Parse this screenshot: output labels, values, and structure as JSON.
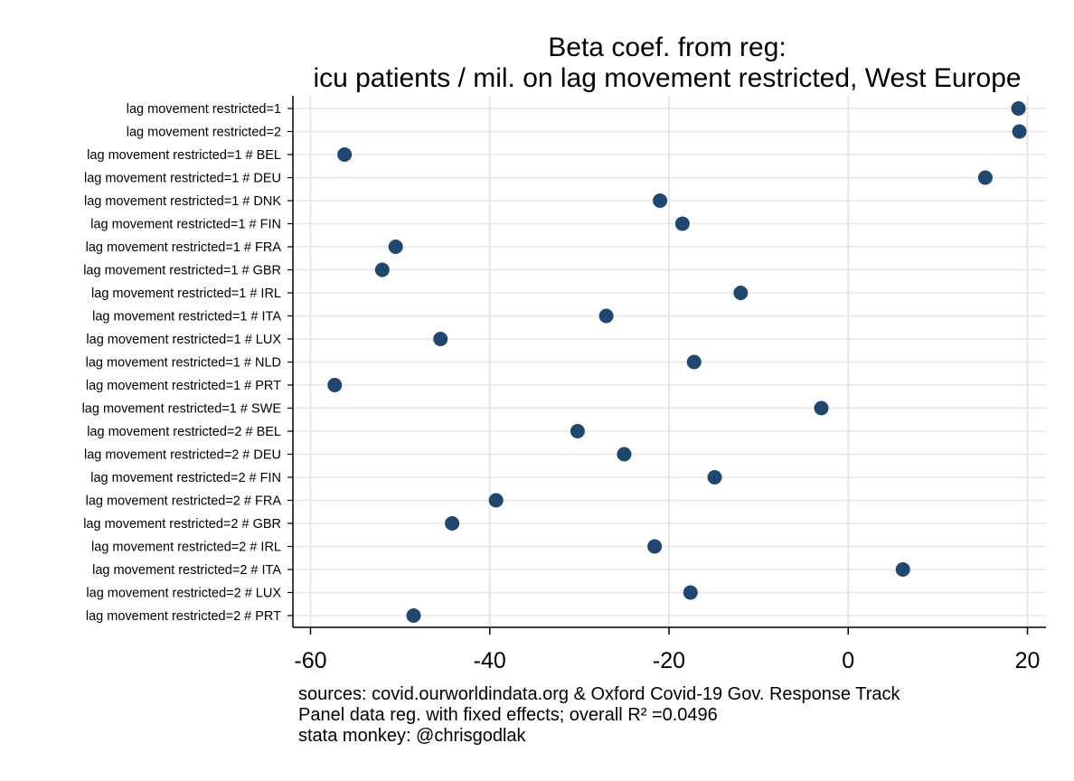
{
  "chart_data": {
    "type": "scatter",
    "title": [
      "Beta coef. from reg:",
      "icu patients / mil. on lag movement restricted, West Europe"
    ],
    "categories": [
      "lag movement restricted=1",
      "lag movement restricted=2",
      "lag movement restricted=1 # BEL",
      "lag movement restricted=1 # DEU",
      "lag movement restricted=1 # DNK",
      "lag movement restricted=1 # FIN",
      "lag movement restricted=1 # FRA",
      "lag movement restricted=1 # GBR",
      "lag movement restricted=1 # IRL",
      "lag movement restricted=1 # ITA",
      "lag movement restricted=1 # LUX",
      "lag movement restricted=1 # NLD",
      "lag movement restricted=1 # PRT",
      "lag movement restricted=1 # SWE",
      "lag movement restricted=2 # BEL",
      "lag movement restricted=2 # DEU",
      "lag movement restricted=2 # FIN",
      "lag movement restricted=2 # FRA",
      "lag movement restricted=2 # GBR",
      "lag movement restricted=2 # IRL",
      "lag movement restricted=2 # ITA",
      "lag movement restricted=2 # LUX",
      "lag movement restricted=2 # PRT"
    ],
    "values": [
      19.0,
      19.1,
      -56.2,
      15.3,
      -21.0,
      -18.5,
      -50.5,
      -52.0,
      -12.0,
      -27.0,
      -45.5,
      -17.2,
      -57.3,
      -3.0,
      -30.2,
      -25.0,
      -14.9,
      -39.3,
      -44.2,
      -21.6,
      6.1,
      -17.6,
      -48.5
    ],
    "x_ticks": [
      -60,
      -40,
      -20,
      0,
      20
    ],
    "x_tick_labels": [
      "-60",
      "-40",
      "-20",
      "0",
      "20"
    ],
    "xlim": [
      -62,
      22
    ],
    "xlabel": "",
    "ylabel": "",
    "grid": true,
    "marker_color": "#1f4770",
    "grid_color": "#e6e6e6"
  },
  "notes": [
    "sources: covid.ourworldindata.org & Oxford Covid-19 Gov. Response Track",
    "Panel data reg. with fixed effects; overall R² =0.0496",
    "stata monkey: @chrisgodlak"
  ]
}
